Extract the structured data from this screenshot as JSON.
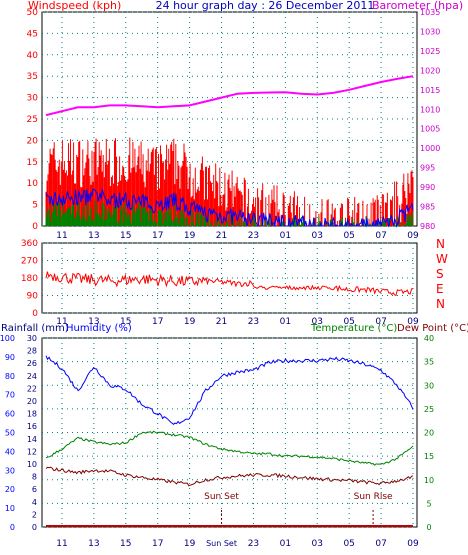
{
  "header": {
    "left": "Windspeed (kph)",
    "center": "24 hour graph day : 26 December 2011",
    "right": "Barometer (hpa)"
  },
  "colors": {
    "wind_axis": "#ff0000",
    "baro_axis": "#cc00cc",
    "title": "#0000c0",
    "frame": "#000000",
    "grid": "#008080",
    "humidity": "#0000ff",
    "rain": "#0000c0",
    "temperature": "#008000",
    "dewpoint": "#800000"
  },
  "x_ticks": [
    "11",
    "13",
    "15",
    "17",
    "19",
    "21",
    "23",
    "01",
    "03",
    "05",
    "07",
    "09"
  ],
  "x_ticks_bottom": [
    "11",
    "13",
    "15",
    "17",
    "19",
    "Sun Set",
    "23",
    "01",
    "03",
    "05",
    "07",
    "09"
  ],
  "top_panel": {
    "wind_ticks": [
      "50",
      "45",
      "40",
      "35",
      "30",
      "25",
      "20",
      "15",
      "10",
      "5",
      "0"
    ],
    "baro_ticks": [
      "1035",
      "1030",
      "1025",
      "1020",
      "1015",
      "1010",
      "1005",
      "1000",
      "995",
      "990",
      "985",
      "980"
    ]
  },
  "dir_panel": {
    "deg_ticks": [
      "360",
      "270",
      "180",
      "90",
      "0"
    ],
    "compass": [
      "N",
      "W",
      "S",
      "E",
      "N"
    ]
  },
  "bottom_panel": {
    "left_label": "Rainfall (mm)",
    "mid_label": "Humidity (%)",
    "right_label": "Temperature (°C)",
    "right_label2": "Dew Point (°C)",
    "humidity_ticks": [
      "100",
      "90",
      "80",
      "70",
      "60",
      "50",
      "40",
      "30",
      "20",
      "10",
      "0"
    ],
    "rain_ticks": [
      "30",
      "28",
      "26",
      "24",
      "22",
      "20",
      "18",
      "16",
      "14",
      "12",
      "10",
      "8",
      "6",
      "4",
      "2",
      "0"
    ],
    "temp_ticks": [
      "40",
      "35",
      "30",
      "25",
      "20",
      "15",
      "10",
      "5",
      "0"
    ],
    "sunset_label": "Sun Set",
    "sunrise_label": "Sun Rise"
  },
  "chart_data": [
    {
      "type": "line",
      "panel": "wind_barometer",
      "x": [
        "10:00",
        "11:00",
        "12:00",
        "13:00",
        "14:00",
        "15:00",
        "16:00",
        "17:00",
        "18:00",
        "19:00",
        "20:00",
        "21:00",
        "22:00",
        "23:00",
        "00:00",
        "01:00",
        "02:00",
        "03:00",
        "04:00",
        "05:00",
        "06:00",
        "07:00",
        "08:00",
        "09:00"
      ],
      "series": [
        {
          "name": "Barometer (hpa)",
          "axis": "right",
          "values": [
            1008.5,
            1009.5,
            1010.5,
            1010.5,
            1011,
            1011,
            1010.8,
            1010.5,
            1010.8,
            1011,
            1012,
            1013,
            1014,
            1014.2,
            1014.3,
            1014.4,
            1014,
            1013.8,
            1014.2,
            1015,
            1016,
            1017,
            1017.8,
            1018.5
          ]
        },
        {
          "name": "Wind gust (kph)",
          "axis": "left",
          "values": [
            14,
            15,
            15,
            15,
            15,
            15,
            14,
            13,
            15,
            13,
            10,
            9,
            6,
            5,
            4,
            3,
            2,
            1,
            1,
            1,
            1,
            2,
            5,
            11
          ]
        },
        {
          "name": "Wind average (kph)",
          "axis": "left",
          "values": [
            6,
            6.5,
            6.5,
            7,
            6,
            6,
            5.5,
            5,
            6,
            4,
            3,
            2.5,
            2,
            1.5,
            1,
            1,
            0.5,
            0,
            0,
            0,
            0,
            0.5,
            1.5,
            4
          ]
        },
        {
          "name": "Wind (green)",
          "axis": "left",
          "values": [
            3,
            3.5,
            3.5,
            3.5,
            3,
            3,
            3,
            2.5,
            3,
            2,
            1,
            1,
            0.5,
            0,
            0,
            0,
            0,
            0,
            0,
            0,
            0,
            0,
            0,
            1
          ]
        }
      ],
      "wind_ylim": [
        0,
        50
      ],
      "baro_ylim": [
        980,
        1035
      ],
      "grid": true
    },
    {
      "type": "scatter",
      "panel": "wind_direction",
      "x": [
        "10:00",
        "11:00",
        "12:00",
        "13:00",
        "14:00",
        "15:00",
        "16:00",
        "17:00",
        "18:00",
        "19:00",
        "20:00",
        "21:00",
        "22:00",
        "23:00",
        "00:00",
        "01:00",
        "02:00",
        "03:00",
        "04:00",
        "05:00",
        "06:00",
        "07:00",
        "08:00",
        "09:00"
      ],
      "series": [
        {
          "name": "Wind direction (deg)",
          "values": [
            200,
            185,
            175,
            170,
            165,
            170,
            175,
            170,
            165,
            160,
            165,
            160,
            150,
            155,
            150,
            140,
            140,
            130,
            130,
            120,
            120,
            110,
            105,
            110
          ]
        }
      ],
      "ylim": [
        0,
        360
      ]
    },
    {
      "type": "line",
      "panel": "temp_humidity",
      "x": [
        "10:00",
        "11:00",
        "12:00",
        "13:00",
        "14:00",
        "15:00",
        "16:00",
        "17:00",
        "18:00",
        "19:00",
        "20:00",
        "21:00",
        "22:00",
        "23:00",
        "00:00",
        "01:00",
        "02:00",
        "03:00",
        "04:00",
        "05:00",
        "06:00",
        "07:00",
        "08:00",
        "09:00"
      ],
      "series": [
        {
          "name": "Humidity (%)",
          "axis": "humidity",
          "values": [
            90,
            84,
            72,
            85,
            75,
            73,
            65,
            60,
            54,
            58,
            72,
            80,
            82,
            83,
            87,
            88,
            88,
            88,
            89,
            88,
            86,
            83,
            75,
            63
          ]
        },
        {
          "name": "Temperature (°C)",
          "axis": "temperature",
          "values": [
            14.5,
            16.5,
            18.8,
            18,
            17.5,
            17.8,
            20,
            20,
            19.5,
            19,
            17.5,
            16.5,
            16,
            15.5,
            15.5,
            15,
            15,
            14.8,
            14.5,
            14,
            13.5,
            13.2,
            14.5,
            17
          ]
        },
        {
          "name": "Dew Point (°C)",
          "axis": "temperature",
          "values": [
            12.5,
            12,
            11.5,
            12,
            11.8,
            11,
            10.5,
            10,
            9.5,
            9,
            10,
            10.5,
            10.8,
            11,
            11,
            10.8,
            10.5,
            10.2,
            10,
            9.8,
            9.5,
            9.2,
            9.8,
            10.5
          ]
        },
        {
          "name": "Rainfall (mm)",
          "axis": "rain",
          "values": [
            0,
            0,
            0,
            0,
            0,
            0,
            0,
            0,
            0,
            0,
            0,
            0,
            0,
            0,
            0,
            0,
            0,
            0,
            0,
            0,
            0,
            0,
            0,
            0
          ]
        }
      ],
      "humidity_ylim": [
        0,
        100
      ],
      "rain_ylim": [
        0,
        30
      ],
      "temp_ylim": [
        0,
        40
      ],
      "grid": true
    }
  ]
}
